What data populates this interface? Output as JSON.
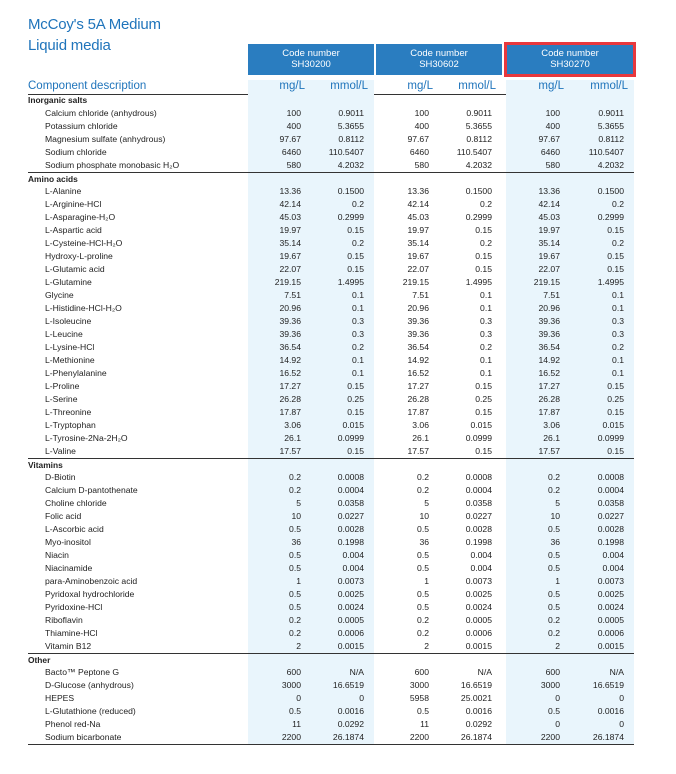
{
  "title": {
    "line1": "McCoy's 5A Medium",
    "line2": "Liquid media"
  },
  "codes": [
    {
      "label": "Code number",
      "code": "SH30200"
    },
    {
      "label": "Code number",
      "code": "SH30602"
    },
    {
      "label": "Code number",
      "code": "SH30270"
    }
  ],
  "headers": {
    "component": "Component description",
    "mg": "mg/L",
    "mmol": "mmol/L"
  },
  "sections": [
    {
      "name": "Inorganic salts",
      "rows": [
        [
          "Calcium chloride (anhydrous)",
          "100",
          "0.9011",
          "100",
          "0.9011",
          "100",
          "0.9011"
        ],
        [
          "Potassium chloride",
          "400",
          "5.3655",
          "400",
          "5.3655",
          "400",
          "5.3655"
        ],
        [
          "Magnesium sulfate (anhydrous)",
          "97.67",
          "0.8112",
          "97.67",
          "0.8112",
          "97.67",
          "0.8112"
        ],
        [
          "Sodium chloride",
          "6460",
          "110.5407",
          "6460",
          "110.5407",
          "6460",
          "110.5407"
        ],
        [
          "Sodium phosphate monobasic H₂O",
          "580",
          "4.2032",
          "580",
          "4.2032",
          "580",
          "4.2032"
        ]
      ]
    },
    {
      "name": "Amino acids",
      "rows": [
        [
          "L-Alanine",
          "13.36",
          "0.1500",
          "13.36",
          "0.1500",
          "13.36",
          "0.1500"
        ],
        [
          "L-Arginine-HCl",
          "42.14",
          "0.2",
          "42.14",
          "0.2",
          "42.14",
          "0.2"
        ],
        [
          "L-Asparagine-H₂O",
          "45.03",
          "0.2999",
          "45.03",
          "0.2999",
          "45.03",
          "0.2999"
        ],
        [
          "L-Aspartic acid",
          "19.97",
          "0.15",
          "19.97",
          "0.15",
          "19.97",
          "0.15"
        ],
        [
          "L-Cysteine-HCl-H₂O",
          "35.14",
          "0.2",
          "35.14",
          "0.2",
          "35.14",
          "0.2"
        ],
        [
          "Hydroxy-L-proline",
          "19.67",
          "0.15",
          "19.67",
          "0.15",
          "19.67",
          "0.15"
        ],
        [
          "L-Glutamic acid",
          "22.07",
          "0.15",
          "22.07",
          "0.15",
          "22.07",
          "0.15"
        ],
        [
          "L-Glutamine",
          "219.15",
          "1.4995",
          "219.15",
          "1.4995",
          "219.15",
          "1.4995"
        ],
        [
          "Glycine",
          "7.51",
          "0.1",
          "7.51",
          "0.1",
          "7.51",
          "0.1"
        ],
        [
          "L-Histidine-HCl-H₂O",
          "20.96",
          "0.1",
          "20.96",
          "0.1",
          "20.96",
          "0.1"
        ],
        [
          "L-Isoleucine",
          "39.36",
          "0.3",
          "39.36",
          "0.3",
          "39.36",
          "0.3"
        ],
        [
          "L-Leucine",
          "39.36",
          "0.3",
          "39.36",
          "0.3",
          "39.36",
          "0.3"
        ],
        [
          "L-Lysine-HCl",
          "36.54",
          "0.2",
          "36.54",
          "0.2",
          "36.54",
          "0.2"
        ],
        [
          "L-Methionine",
          "14.92",
          "0.1",
          "14.92",
          "0.1",
          "14.92",
          "0.1"
        ],
        [
          "L-Phenylalanine",
          "16.52",
          "0.1",
          "16.52",
          "0.1",
          "16.52",
          "0.1"
        ],
        [
          "L-Proline",
          "17.27",
          "0.15",
          "17.27",
          "0.15",
          "17.27",
          "0.15"
        ],
        [
          "L-Serine",
          "26.28",
          "0.25",
          "26.28",
          "0.25",
          "26.28",
          "0.25"
        ],
        [
          "L-Threonine",
          "17.87",
          "0.15",
          "17.87",
          "0.15",
          "17.87",
          "0.15"
        ],
        [
          "L-Tryptophan",
          "3.06",
          "0.015",
          "3.06",
          "0.015",
          "3.06",
          "0.015"
        ],
        [
          "L-Tyrosine-2Na-2H₂O",
          "26.1",
          "0.0999",
          "26.1",
          "0.0999",
          "26.1",
          "0.0999"
        ],
        [
          "L-Valine",
          "17.57",
          "0.15",
          "17.57",
          "0.15",
          "17.57",
          "0.15"
        ]
      ]
    },
    {
      "name": "Vitamins",
      "rows": [
        [
          "D-Biotin",
          "0.2",
          "0.0008",
          "0.2",
          "0.0008",
          "0.2",
          "0.0008"
        ],
        [
          "Calcium D-pantothenate",
          "0.2",
          "0.0004",
          "0.2",
          "0.0004",
          "0.2",
          "0.0004"
        ],
        [
          "Choline chloride",
          "5",
          "0.0358",
          "5",
          "0.0358",
          "5",
          "0.0358"
        ],
        [
          "Folic acid",
          "10",
          "0.0227",
          "10",
          "0.0227",
          "10",
          "0.0227"
        ],
        [
          "L-Ascorbic acid",
          "0.5",
          "0.0028",
          "0.5",
          "0.0028",
          "0.5",
          "0.0028"
        ],
        [
          "Myo-inositol",
          "36",
          "0.1998",
          "36",
          "0.1998",
          "36",
          "0.1998"
        ],
        [
          "Niacin",
          "0.5",
          "0.004",
          "0.5",
          "0.004",
          "0.5",
          "0.004"
        ],
        [
          "Niacinamide",
          "0.5",
          "0.004",
          "0.5",
          "0.004",
          "0.5",
          "0.004"
        ],
        [
          "para-Aminobenzoic acid",
          "1",
          "0.0073",
          "1",
          "0.0073",
          "1",
          "0.0073"
        ],
        [
          "Pyridoxal hydrochloride",
          "0.5",
          "0.0025",
          "0.5",
          "0.0025",
          "0.5",
          "0.0025"
        ],
        [
          "Pyridoxine-HCl",
          "0.5",
          "0.0024",
          "0.5",
          "0.0024",
          "0.5",
          "0.0024"
        ],
        [
          "Riboflavin",
          "0.2",
          "0.0005",
          "0.2",
          "0.0005",
          "0.2",
          "0.0005"
        ],
        [
          "Thiamine-HCl",
          "0.2",
          "0.0006",
          "0.2",
          "0.0006",
          "0.2",
          "0.0006"
        ],
        [
          "Vitamin B12",
          "2",
          "0.0015",
          "2",
          "0.0015",
          "2",
          "0.0015"
        ]
      ]
    },
    {
      "name": "Other",
      "rows": [
        [
          "Bacto™ Peptone G",
          "600",
          "N/A",
          "600",
          "N/A",
          "600",
          "N/A"
        ],
        [
          "D-Glucose (anhydrous)",
          "3000",
          "16.6519",
          "3000",
          "16.6519",
          "3000",
          "16.6519"
        ],
        [
          "HEPES",
          "0",
          "0",
          "5958",
          "25.0021",
          "0",
          "0"
        ],
        [
          "L-Glutathione (reduced)",
          "0.5",
          "0.0016",
          "0.5",
          "0.0016",
          "0.5",
          "0.0016"
        ],
        [
          "Phenol red-Na",
          "11",
          "0.0292",
          "11",
          "0.0292",
          "0",
          "0"
        ],
        [
          "Sodium bicarbonate",
          "2200",
          "26.1874",
          "2200",
          "26.1874",
          "2200",
          "26.1874"
        ]
      ]
    }
  ]
}
